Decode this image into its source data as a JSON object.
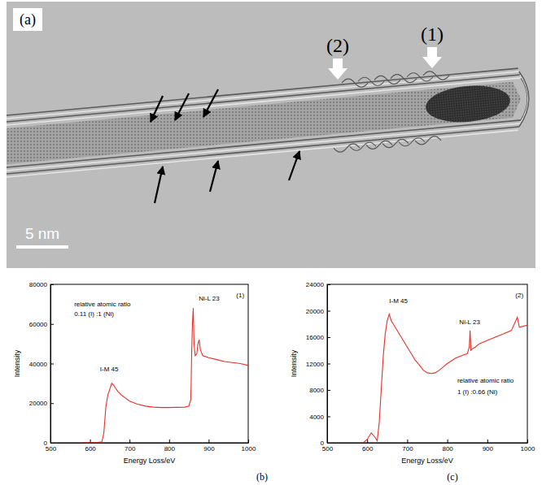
{
  "image_panel": {
    "panel_label": "(a)",
    "region_labels": [
      "(2)",
      "(1)"
    ],
    "scale_bar": "5 nm"
  },
  "chart_data": [
    {
      "type": "line",
      "panel_label": "(b)",
      "x_label": "Energy Loss/eV",
      "y_label": "Intensity",
      "color": "#e8302a",
      "xlim": [
        500,
        1000
      ],
      "xticks": [
        500,
        600,
        700,
        800,
        900,
        1000
      ],
      "ylim": [
        0,
        80000
      ],
      "yticks": [
        0,
        20000,
        40000,
        60000,
        80000
      ],
      "annotations": [
        "I-M 45",
        "Ni-L 23",
        "relative atomic ratio",
        "0.11 (I) :1 (Ni)",
        "(1)"
      ],
      "x": [
        580,
        600,
        620,
        630,
        635,
        640,
        645,
        650,
        655,
        660,
        670,
        680,
        690,
        700,
        720,
        740,
        760,
        780,
        800,
        820,
        840,
        850,
        855,
        857,
        859,
        861,
        863,
        866,
        870,
        873,
        876,
        879,
        885,
        900,
        920,
        940,
        960,
        980,
        1000
      ],
      "values": [
        0,
        100,
        200,
        500,
        5000,
        18000,
        24000,
        27000,
        30000,
        29000,
        26000,
        24000,
        22500,
        21000,
        19500,
        18500,
        18000,
        17800,
        17800,
        17900,
        18000,
        18500,
        22000,
        45000,
        60000,
        68000,
        50000,
        44000,
        45000,
        50000,
        52000,
        47000,
        44000,
        43000,
        42000,
        41000,
        40500,
        40000,
        39000
      ]
    },
    {
      "type": "line",
      "panel_label": "(c)",
      "x_label": "Energy Loss/eV",
      "y_label": "Intensity",
      "color": "#e8302a",
      "xlim": [
        500,
        1000
      ],
      "xticks": [
        500,
        600,
        700,
        800,
        900,
        1000
      ],
      "ylim": [
        0,
        24000
      ],
      "yticks": [
        0,
        4000,
        8000,
        12000,
        16000,
        20000,
        24000
      ],
      "annotations": [
        "I-M 45",
        "Ni-L 23",
        "(2)",
        "relative atomic ratio",
        "1 (I) :0.66 (Ni)"
      ],
      "x": [
        590,
        600,
        610,
        620,
        625,
        630,
        635,
        640,
        645,
        650,
        655,
        660,
        670,
        680,
        690,
        700,
        710,
        720,
        730,
        740,
        750,
        760,
        770,
        780,
        790,
        800,
        820,
        840,
        850,
        855,
        857,
        859,
        862,
        870,
        880,
        900,
        920,
        940,
        960,
        975,
        980,
        1000
      ],
      "values": [
        0,
        500,
        1500,
        800,
        300,
        3000,
        8000,
        13000,
        16500,
        18500,
        19500,
        18500,
        17500,
        16500,
        15500,
        14500,
        13500,
        12500,
        11800,
        11000,
        10600,
        10500,
        10600,
        11000,
        11500,
        12000,
        12800,
        13300,
        13500,
        14500,
        17000,
        14000,
        14200,
        14500,
        15000,
        15500,
        16000,
        16500,
        17000,
        19000,
        17500,
        17800
      ]
    }
  ]
}
